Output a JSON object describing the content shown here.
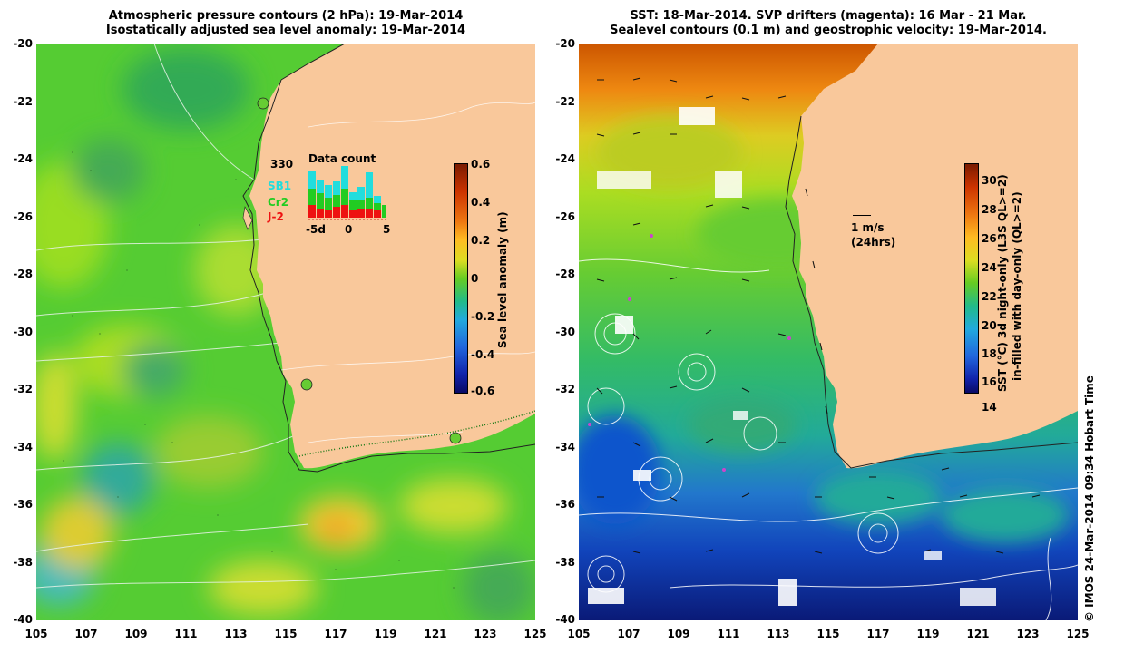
{
  "left": {
    "title_line1": "Atmospheric pressure contours (2 hPa): 19-Mar-2014",
    "title_line2": "Isostatically adjusted sea level anomaly: 19-Mar-2014",
    "colorbar_label": "Sea level anomaly (m)",
    "colorbar_ticks": [
      "0.6",
      "0.4",
      "0.2",
      "0",
      "-0.2",
      "-0.4",
      "-0.6"
    ],
    "inset": {
      "title": "Data count",
      "count": "330",
      "legend": [
        "SB1",
        "Cr2",
        "J-2"
      ],
      "legend_colors": [
        "#22dddd",
        "#22cc22",
        "#ee1111"
      ],
      "axis_ticks": [
        "-5d",
        "0",
        "5"
      ]
    }
  },
  "right": {
    "title_line1": "SST: 18-Mar-2014. SVP drifters (magenta): 16 Mar - 21 Mar.",
    "title_line2": "Sealevel contours (0.1 m) and geostrophic velocity: 19-Mar-2014.",
    "colorbar_label_line1": "SST (°C) 3d night-only (L3S QL>=2)",
    "colorbar_label_line2": "in-filled with day-only (QL>=2)",
    "colorbar_ticks": [
      "30",
      "28",
      "26",
      "24",
      "22",
      "20",
      "18",
      "16",
      "14"
    ],
    "velocity_scale": "1 m/s",
    "velocity_note": "(24hrs)"
  },
  "y_ticks": [
    "-20",
    "-22",
    "-24",
    "-26",
    "-28",
    "-30",
    "-32",
    "-34",
    "-36",
    "-38",
    "-40"
  ],
  "x_ticks": [
    "105",
    "107",
    "109",
    "111",
    "113",
    "115",
    "117",
    "119",
    "121",
    "123",
    "125"
  ],
  "credit": "© IMOS 24-Mar-2014 09:34 Hobart Time",
  "colors": {
    "land": "#f9c89b",
    "coast": "#222222"
  }
}
